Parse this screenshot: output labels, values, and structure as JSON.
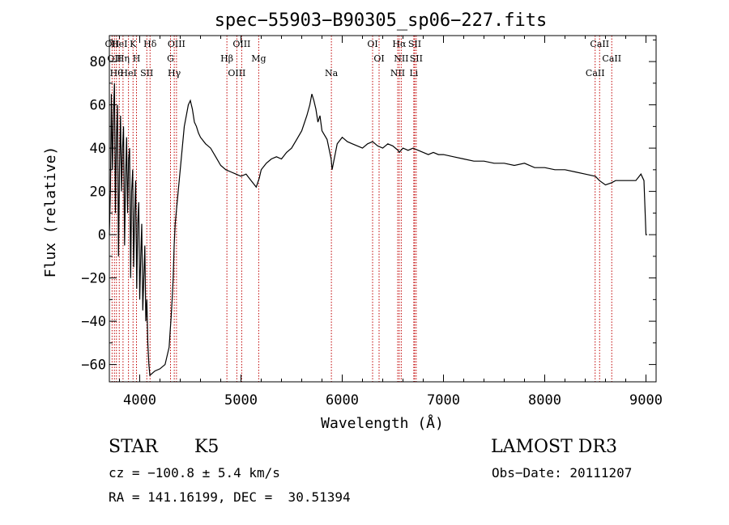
{
  "chart_data": {
    "type": "line",
    "title": "spec−55903−B90305_sp06−227.fits",
    "xlabel": "Wavelength (Å)",
    "ylabel": "Flux (relative)",
    "xlim": [
      3700,
      9100
    ],
    "ylim": [
      -68,
      92
    ],
    "x_ticks": [
      4000,
      5000,
      6000,
      7000,
      8000,
      9000
    ],
    "y_ticks": [
      -60,
      -40,
      -20,
      0,
      20,
      40,
      60,
      80
    ],
    "grid": false,
    "legend": "none",
    "series": [
      {
        "x": [
          3700,
          3710,
          3720,
          3730,
          3740,
          3750,
          3760,
          3770,
          3780,
          3790,
          3800,
          3810,
          3820,
          3830,
          3840,
          3850,
          3860,
          3870,
          3880,
          3890,
          3900,
          3910,
          3920,
          3930,
          3940,
          3950,
          3960,
          3970,
          3980,
          3990,
          4000,
          4010,
          4020,
          4030,
          4040,
          4050,
          4060,
          4070,
          4080,
          4090,
          4100,
          4150,
          4200,
          4250,
          4290,
          4300,
          4310,
          4320,
          4330,
          4340,
          4350,
          4360,
          4380,
          4400,
          4420,
          4440,
          4460,
          4480,
          4500,
          4520,
          4540,
          4560,
          4580,
          4600,
          4650,
          4700,
          4750,
          4800,
          4850,
          4900,
          4950,
          5000,
          5050,
          5100,
          5150,
          5180,
          5200,
          5250,
          5300,
          5350,
          5400,
          5450,
          5500,
          5550,
          5600,
          5650,
          5680,
          5700,
          5720,
          5740,
          5760,
          5780,
          5800,
          5850,
          5890,
          5900,
          5950,
          6000,
          6050,
          6100,
          6150,
          6200,
          6250,
          6300,
          6350,
          6400,
          6450,
          6500,
          6550,
          6563,
          6600,
          6650,
          6700,
          6750,
          6800,
          6850,
          6900,
          6950,
          7000,
          7100,
          7200,
          7300,
          7400,
          7500,
          7600,
          7700,
          7800,
          7900,
          8000,
          8100,
          8200,
          8300,
          8400,
          8500,
          8540,
          8600,
          8660,
          8700,
          8800,
          8900,
          8950,
          8980,
          9000,
          9010
        ],
        "y": [
          0,
          20,
          65,
          30,
          55,
          70,
          10,
          45,
          60,
          -10,
          30,
          55,
          20,
          40,
          50,
          -5,
          25,
          45,
          10,
          35,
          40,
          -20,
          20,
          30,
          -15,
          10,
          25,
          -25,
          5,
          15,
          -30,
          -10,
          5,
          -35,
          -20,
          -5,
          -40,
          -30,
          -50,
          -60,
          -65,
          -63,
          -62,
          -60,
          -52,
          -45,
          -38,
          -30,
          -20,
          -5,
          5,
          10,
          20,
          30,
          40,
          50,
          55,
          60,
          62,
          58,
          52,
          50,
          47,
          45,
          42,
          40,
          36,
          32,
          30,
          29,
          28,
          27,
          28,
          25,
          22,
          26,
          30,
          33,
          35,
          36,
          35,
          38,
          40,
          44,
          48,
          55,
          60,
          65,
          62,
          58,
          52,
          55,
          48,
          44,
          35,
          30,
          42,
          45,
          43,
          42,
          41,
          40,
          42,
          43,
          41,
          40,
          42,
          41,
          39,
          38,
          40,
          39,
          40,
          39,
          38,
          37,
          38,
          37,
          37,
          36,
          35,
          34,
          34,
          33,
          33,
          32,
          33,
          31,
          31,
          30,
          30,
          29,
          28,
          27,
          25,
          23,
          24,
          25,
          25,
          25,
          28,
          25,
          0,
          0
        ]
      }
    ],
    "lines": [
      {
        "x": 3727,
        "labels": [
          "OII"
        ]
      },
      {
        "x": 3750,
        "labels": [
          "OII"
        ]
      },
      {
        "x": 3770,
        "labels": [
          "Hθ"
        ]
      },
      {
        "x": 3798,
        "labels": [
          "HeI"
        ]
      },
      {
        "x": 3835,
        "labels": [
          "Hη"
        ]
      },
      {
        "x": 3889,
        "labels": [
          "HeI"
        ]
      },
      {
        "x": 3934,
        "labels": [
          "K"
        ]
      },
      {
        "x": 3968,
        "labels": [
          "H"
        ]
      },
      {
        "x": 4070,
        "labels": [
          "SII"
        ]
      },
      {
        "x": 4102,
        "labels": [
          "Hδ"
        ]
      },
      {
        "x": 4304,
        "labels": [
          "G"
        ]
      },
      {
        "x": 4341,
        "labels": [
          "Hγ"
        ]
      },
      {
        "x": 4363,
        "labels": [
          "OIII"
        ]
      },
      {
        "x": 4861,
        "labels": [
          "Hβ"
        ]
      },
      {
        "x": 4959,
        "labels": [
          "OIII"
        ]
      },
      {
        "x": 5007,
        "labels": [
          "OIII"
        ]
      },
      {
        "x": 5175,
        "labels": [
          "Mg"
        ]
      },
      {
        "x": 5893,
        "labels": [
          "Na"
        ]
      },
      {
        "x": 6300,
        "labels": [
          "OI"
        ]
      },
      {
        "x": 6364,
        "labels": [
          "OI"
        ]
      },
      {
        "x": 6548,
        "labels": [
          "NII"
        ]
      },
      {
        "x": 6563,
        "labels": [
          "Hα"
        ]
      },
      {
        "x": 6583,
        "labels": [
          "NII"
        ]
      },
      {
        "x": 6707,
        "labels": [
          "Li"
        ]
      },
      {
        "x": 6716,
        "labels": [
          "SII"
        ]
      },
      {
        "x": 6731,
        "labels": [
          "SII"
        ]
      },
      {
        "x": 8498,
        "labels": [
          "CaII"
        ]
      },
      {
        "x": 8542,
        "labels": [
          "CaII"
        ]
      },
      {
        "x": 8662,
        "labels": [
          "CaII"
        ]
      }
    ]
  },
  "info": {
    "class": "STAR",
    "subclass": "K5",
    "survey": "LAMOST DR3",
    "cz": "cz = −100.8 ± 5.4 km/s",
    "obs_date": "Obs−Date: 20111207",
    "coords": "RA = 141.16199, DEC =  30.51394"
  }
}
